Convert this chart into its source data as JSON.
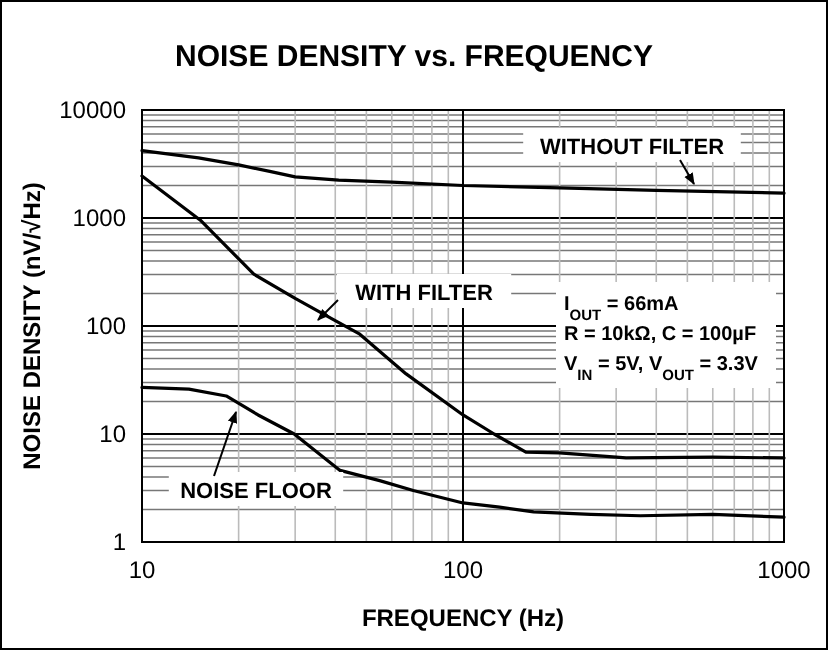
{
  "chart_data": {
    "type": "line",
    "title": "NOISE DENSITY vs. FREQUENCY",
    "xlabel": "FREQUENCY (Hz)",
    "ylabel": "NOISE DENSITY (nV/√Hz)",
    "log": "xy",
    "grid": true,
    "legend": false,
    "line_style": "solid",
    "xlim": [
      10,
      1000
    ],
    "ylim": [
      1,
      10000
    ],
    "xticks": [
      10,
      {
        "value": 20,
        "label": null
      },
      {
        "value": 30,
        "label": null
      },
      {
        "value": 40,
        "label": null
      },
      {
        "value": 50,
        "label": null
      },
      {
        "value": 60,
        "label": null
      },
      {
        "value": 70,
        "label": null
      },
      {
        "value": 80,
        "label": null
      },
      {
        "value": 90,
        "label": null
      },
      100,
      {
        "value": 200,
        "label": null
      },
      {
        "value": 300,
        "label": null
      },
      {
        "value": 400,
        "label": null
      },
      {
        "value": 500,
        "label": null
      },
      {
        "value": 600,
        "label": null
      },
      {
        "value": 700,
        "label": null
      },
      {
        "value": 800,
        "label": null
      },
      {
        "value": 900,
        "label": null
      },
      1000
    ],
    "yticks": [
      1,
      {
        "value": 2,
        "label": null
      },
      {
        "value": 3,
        "label": null
      },
      {
        "value": 4,
        "label": null
      },
      {
        "value": 5,
        "label": null
      },
      {
        "value": 6,
        "label": null
      },
      {
        "value": 7,
        "label": null
      },
      {
        "value": 8,
        "label": null
      },
      {
        "value": 9,
        "label": null
      },
      10,
      {
        "value": 20,
        "label": null
      },
      {
        "value": 30,
        "label": null
      },
      {
        "value": 40,
        "label": null
      },
      {
        "value": 50,
        "label": null
      },
      {
        "value": 60,
        "label": null
      },
      {
        "value": 70,
        "label": null
      },
      {
        "value": 80,
        "label": null
      },
      {
        "value": 90,
        "label": null
      },
      100,
      {
        "value": 200,
        "label": null
      },
      {
        "value": 300,
        "label": null
      },
      {
        "value": 400,
        "label": null
      },
      {
        "value": 500,
        "label": null
      },
      {
        "value": 600,
        "label": null
      },
      {
        "value": 700,
        "label": null
      },
      {
        "value": 800,
        "label": null
      },
      {
        "value": 900,
        "label": null
      },
      1000,
      {
        "value": 2000,
        "label": null
      },
      {
        "value": 3000,
        "label": null
      },
      {
        "value": 4000,
        "label": null
      },
      {
        "value": 5000,
        "label": null
      },
      {
        "value": 6000,
        "label": null
      },
      {
        "value": 7000,
        "label": null
      },
      {
        "value": 8000,
        "label": null
      },
      {
        "value": 9000,
        "label": null
      },
      10000
    ],
    "series": [
      {
        "name": "WITHOUT FILTER",
        "color": "#000000",
        "x": [
          10,
          15,
          20,
          25,
          30,
          41,
          60,
          100,
          200,
          400,
          1000
        ],
        "values": [
          4200,
          3600,
          3100,
          2700,
          2400,
          2240,
          2150,
          2000,
          1900,
          1800,
          1700
        ]
      },
      {
        "name": "WITH FILTER",
        "color": "#000000",
        "x": [
          10,
          15.2,
          22.3,
          30,
          39.6,
          47.7,
          66.5,
          100,
          125,
          157,
          200,
          322,
          600,
          1000
        ],
        "values": [
          2450,
          955,
          302,
          180,
          114,
          84,
          36,
          15,
          10,
          6.8,
          6.7,
          6,
          6.1,
          6
        ]
      },
      {
        "name": "NOISE FLOOR",
        "color": "#000000",
        "x": [
          10,
          14,
          18.3,
          23,
          29.8,
          41.4,
          55,
          70,
          100,
          130,
          166,
          250,
          357,
          600,
          1000
        ],
        "values": [
          27,
          26,
          22.5,
          15,
          10,
          4.6,
          3.7,
          3,
          2.3,
          2.1,
          1.9,
          1.8,
          1.75,
          1.8,
          1.7
        ]
      }
    ],
    "annotations": [
      "I$_{OUT}$ = 66mA",
      "R = 10kΩ, C = 100µF",
      "V$_{IN}$ = 5V, V$_{OUT}$ = 3.3V"
    ]
  }
}
